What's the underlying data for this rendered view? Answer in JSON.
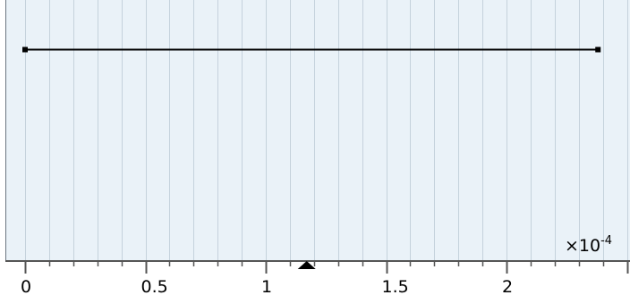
{
  "colors": {
    "plot_background": "#eaf2f8",
    "grid_line": "#c5d2dc",
    "frame": "#6a7680",
    "segment": "#000000",
    "axis": "#555555"
  },
  "axis": {
    "major_ticks": [
      {
        "value": 0,
        "label": "0"
      },
      {
        "value": 0.5,
        "label": "0.5"
      },
      {
        "value": 1,
        "label": "1"
      },
      {
        "value": 1.5,
        "label": "1.5"
      },
      {
        "value": 2,
        "label": "2"
      }
    ],
    "minor_step": 0.1,
    "range": [
      -0.03,
      2.6
    ],
    "scale_mantissa": "×10",
    "scale_exponent": "-4"
  },
  "segment": {
    "x_start": 0,
    "x_end": 2.38
  },
  "cursor_marker": {
    "value": 1.17,
    "icon": "triangle-up-icon"
  }
}
